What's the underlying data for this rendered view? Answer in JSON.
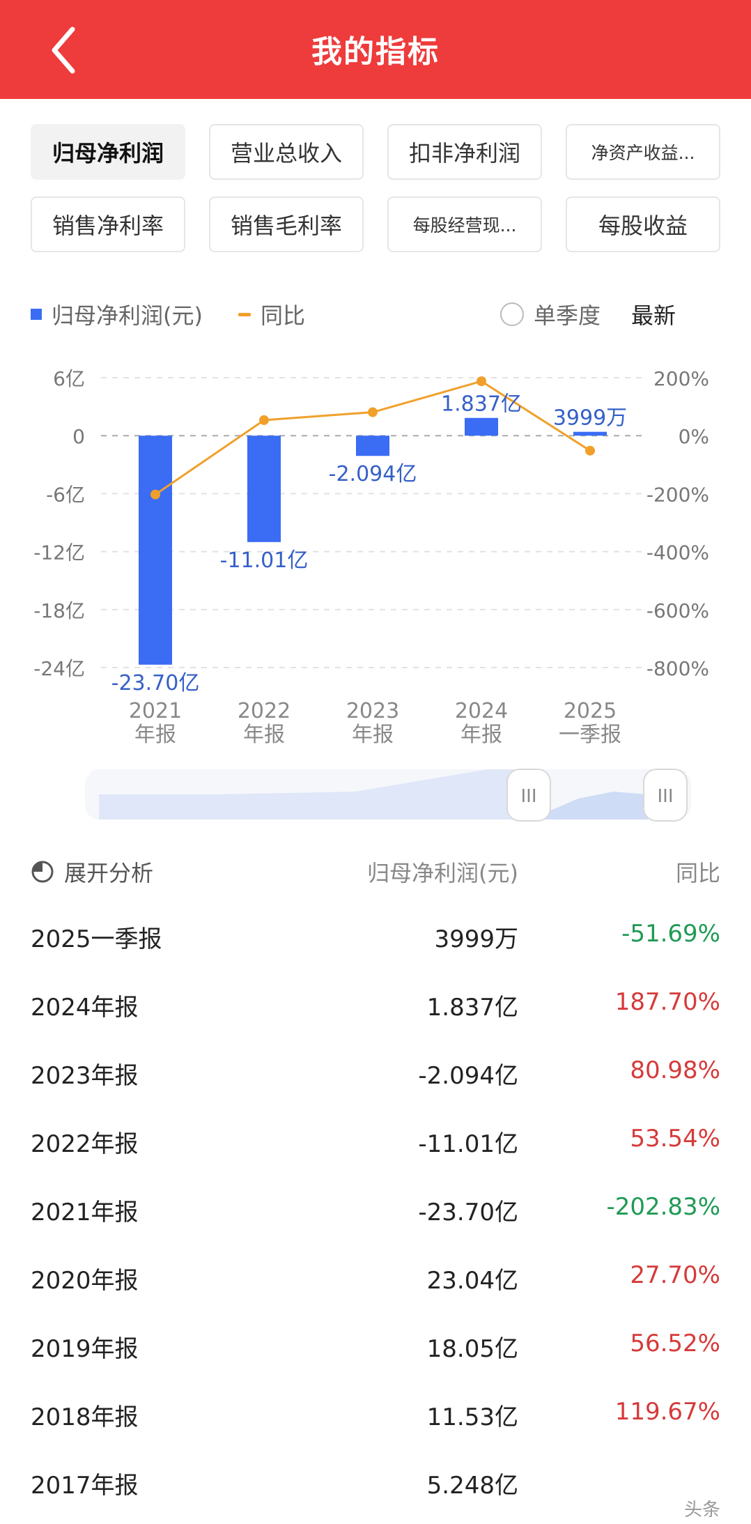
{
  "header": {
    "title": "我的指标",
    "back_icon": "chevron-left-icon"
  },
  "tabs": [
    {
      "label": "归母净利润",
      "active": true
    },
    {
      "label": "营业总收入",
      "active": false
    },
    {
      "label": "扣非净利润",
      "active": false
    },
    {
      "label": "净资产收益...",
      "active": false
    },
    {
      "label": "销售净利率",
      "active": false
    },
    {
      "label": "销售毛利率",
      "active": false
    },
    {
      "label": "每股经营现...",
      "active": false
    },
    {
      "label": "每股收益",
      "active": false
    }
  ],
  "legend": {
    "bar_label": "归母净利润(元)",
    "line_label": "同比",
    "single_quarter": "单季度",
    "latest": "最新"
  },
  "colors": {
    "header": "#ee3b3b",
    "bar": "#3a6cf4",
    "line": "#f0a02a",
    "up": "#d63a3a",
    "down": "#1f9a55"
  },
  "chart_data": {
    "type": "bar",
    "categories": [
      {
        "year": "2021",
        "kind": "年报"
      },
      {
        "year": "2022",
        "kind": "年报"
      },
      {
        "year": "2023",
        "kind": "年报"
      },
      {
        "year": "2024",
        "kind": "年报"
      },
      {
        "year": "2025",
        "kind": "一季报"
      }
    ],
    "series": [
      {
        "name": "归母净利润(元)",
        "axis": "left",
        "values": [
          -23.7,
          -11.01,
          -2.094,
          1.837,
          0.3999
        ],
        "labels": [
          "-23.70亿",
          "-11.01亿",
          "-2.094亿",
          "1.837亿",
          "3999万"
        ]
      },
      {
        "name": "同比",
        "axis": "right",
        "type": "line",
        "values": [
          -202.83,
          53.54,
          80.98,
          187.7,
          -51.69
        ]
      }
    ],
    "y_left": {
      "ticks": [
        6,
        0,
        -6,
        -12,
        -18,
        -24
      ],
      "tick_labels": [
        "6亿",
        "0",
        "-6亿",
        "-12亿",
        "-18亿",
        "-24亿"
      ],
      "range": [
        -24,
        6
      ]
    },
    "y_right": {
      "ticks": [
        200,
        0,
        -200,
        -400,
        -600,
        -800
      ],
      "tick_labels": [
        "200%",
        "0%",
        "-200%",
        "-400%",
        "-600%",
        "-800%"
      ],
      "range": [
        -800,
        200
      ]
    },
    "grid": true,
    "legend": "top-left"
  },
  "analysis": {
    "title": "展开分析",
    "col_value": "归母净利润(元)",
    "col_yoy": "同比",
    "rows": [
      {
        "period": "2025一季报",
        "value": "3999万",
        "yoy": "-51.69%",
        "trend": "down"
      },
      {
        "period": "2024年报",
        "value": "1.837亿",
        "yoy": "187.70%",
        "trend": "up"
      },
      {
        "period": "2023年报",
        "value": "-2.094亿",
        "yoy": "80.98%",
        "trend": "up"
      },
      {
        "period": "2022年报",
        "value": "-11.01亿",
        "yoy": "53.54%",
        "trend": "up"
      },
      {
        "period": "2021年报",
        "value": "-23.70亿",
        "yoy": "-202.83%",
        "trend": "down"
      },
      {
        "period": "2020年报",
        "value": "23.04亿",
        "yoy": "27.70%",
        "trend": "up"
      },
      {
        "period": "2019年报",
        "value": "18.05亿",
        "yoy": "56.52%",
        "trend": "up"
      },
      {
        "period": "2018年报",
        "value": "11.53亿",
        "yoy": "119.67%",
        "trend": "up"
      },
      {
        "period": "2017年报",
        "value": "5.248亿",
        "yoy": "",
        "trend": "up"
      }
    ]
  },
  "watermark": "头条"
}
